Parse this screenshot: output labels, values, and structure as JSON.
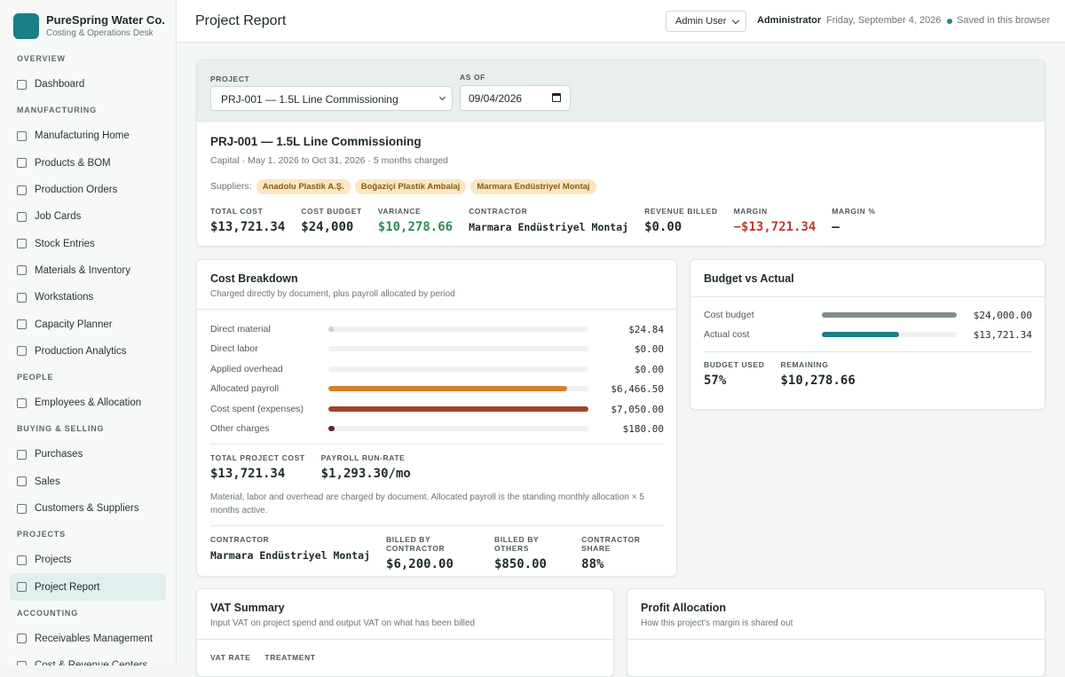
{
  "brand": {
    "name": "PureSpring Water Co.",
    "subtitle": "Costing & Operations Desk"
  },
  "nav": {
    "sections": [
      {
        "title": "OVERVIEW",
        "items": [
          "Dashboard"
        ]
      },
      {
        "title": "MANUFACTURING",
        "items": [
          "Manufacturing Home",
          "Products & BOM",
          "Production Orders",
          "Job Cards",
          "Stock Entries",
          "Materials & Inventory",
          "Workstations",
          "Capacity Planner",
          "Production Analytics"
        ]
      },
      {
        "title": "PEOPLE",
        "items": [
          "Employees & Allocation"
        ]
      },
      {
        "title": "BUYING & SELLING",
        "items": [
          "Purchases",
          "Sales",
          "Customers & Suppliers"
        ]
      },
      {
        "title": "PROJECTS",
        "items": [
          "Projects",
          "Project Report"
        ]
      },
      {
        "title": "ACCOUNTING",
        "items": [
          "Receivables Management",
          "Cost & Revenue Centers"
        ]
      }
    ],
    "active": {
      "section": 4,
      "item": 1
    }
  },
  "header": {
    "title": "Project Report",
    "user": "Admin User",
    "role": "Administrator",
    "date": "Friday, September 4, 2026",
    "status": "Saved in this browser"
  },
  "filters": {
    "project_label": "PROJECT",
    "project_value": "PRJ-001 — 1.5L Line Commissioning",
    "asof_label": "AS OF",
    "asof_value": "09/04/2026"
  },
  "project": {
    "title": "PRJ-001 — 1.5L Line Commissioning",
    "meta": "Capital · May 1, 2026 to Oct 31, 2026 · 5 months charged",
    "suppliers_label": "Suppliers:",
    "suppliers": [
      "Anadolu Plastik A.Ş.",
      "Boğaziçi Plastik Ambalaj",
      "Marmara Endüstriyel Montaj"
    ],
    "stats": [
      {
        "label": "TOTAL COST",
        "value": "$13,721.34"
      },
      {
        "label": "COST BUDGET",
        "value": "$24,000"
      },
      {
        "label": "VARIANCE",
        "value": "$10,278.66",
        "color": "#2e8b57"
      },
      {
        "label": "CONTRACTOR",
        "value": "Marmara Endüstriyel Montaj",
        "small": true
      },
      {
        "label": "REVENUE BILLED",
        "value": "$0.00"
      },
      {
        "label": "MARGIN",
        "value": "−$13,721.34",
        "color": "#c0392b"
      },
      {
        "label": "MARGIN %",
        "value": "—"
      }
    ]
  },
  "cost_breakdown": {
    "title": "Cost Breakdown",
    "subtitle": "Charged directly by document, plus payroll allocated by period",
    "rows": [
      {
        "label": "Direct material",
        "value": 24.84,
        "value_label": "$24.84",
        "color": "#c9d0cf"
      },
      {
        "label": "Direct labor",
        "value": 0,
        "value_label": "$0.00",
        "color": "#c9d0cf"
      },
      {
        "label": "Applied overhead",
        "value": 0,
        "value_label": "$0.00",
        "color": "#c9d0cf"
      },
      {
        "label": "Allocated payroll",
        "value": 6466.5,
        "value_label": "$6,466.50",
        "color": "#d4812a"
      },
      {
        "label": "Cost spent (expenses)",
        "value": 7050,
        "value_label": "$7,050.00",
        "color": "#a3432a"
      },
      {
        "label": "Other charges",
        "value": 180,
        "value_label": "$180.00",
        "color": "#6b1f3a"
      }
    ],
    "totals": [
      {
        "label": "TOTAL PROJECT COST",
        "value": "$13,721.34"
      },
      {
        "label": "PAYROLL RUN-RATE",
        "value": "$1,293.30/mo"
      }
    ],
    "note": "Material, labor and overhead are charged by document. Allocated payroll is the standing monthly allocation × 5 months active.",
    "contractor": [
      {
        "label": "CONTRACTOR",
        "value": "Marmara Endüstriyel Montaj",
        "small": true
      },
      {
        "label": "BILLED BY CONTRACTOR",
        "value": "$6,200.00"
      },
      {
        "label": "BILLED BY OTHERS",
        "value": "$850.00"
      },
      {
        "label": "CONTRACTOR SHARE",
        "value": "88%"
      }
    ]
  },
  "budget": {
    "title": "Budget vs Actual",
    "rows": [
      {
        "label": "Cost budget",
        "value": 24000,
        "value_label": "$24,000.00",
        "color": "#7f8c8d"
      },
      {
        "label": "Actual cost",
        "value": 13721.34,
        "value_label": "$13,721.34",
        "color": "#1a7f86"
      }
    ],
    "stats": [
      {
        "label": "BUDGET USED",
        "value": "57%"
      },
      {
        "label": "REMAINING",
        "value": "$10,278.66"
      }
    ]
  },
  "vat": {
    "title": "VAT Summary",
    "subtitle": "Input VAT on project spend and output VAT on what has been billed",
    "columns": [
      "VAT RATE",
      "TREATMENT"
    ]
  },
  "profit": {
    "title": "Profit Allocation",
    "subtitle": "How this project's margin is shared out"
  }
}
